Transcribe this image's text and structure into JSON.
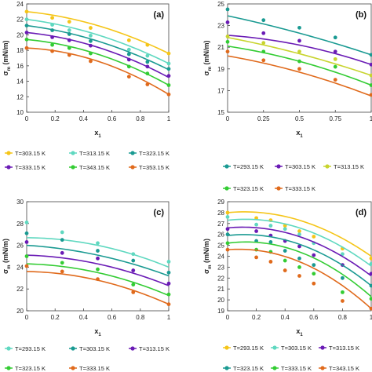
{
  "chart_data": [
    {
      "type": "scatter",
      "panel_label": "(a)",
      "xlabel": "x",
      "xlabel_sub": "1",
      "ylabel": "σ",
      "ylabel_sub": "m",
      "ylabel_unit": " (mN/m)",
      "xlim": [
        0,
        1
      ],
      "ylim": [
        10,
        24
      ],
      "xticks": [
        "0",
        "0.2",
        "0.4",
        "0.6",
        "0.8",
        "1"
      ],
      "yticks": [
        "10",
        "12",
        "14",
        "16",
        "18",
        "20",
        "22",
        "24"
      ],
      "grid": false,
      "legend": "below",
      "series": [
        {
          "name": "T=303.15 K",
          "color": "#F5C518",
          "x": [
            0,
            0.18,
            0.3,
            0.45,
            0.72,
            0.85,
            1
          ],
          "y": [
            23.0,
            22.2,
            21.7,
            20.9,
            19.3,
            18.7,
            17.6
          ],
          "fit_y": [
            23.0,
            21.2,
            17.6
          ]
        },
        {
          "name": "T=313.15 K",
          "color": "#5FD8C0",
          "x": [
            0,
            0.18,
            0.3,
            0.45,
            0.72,
            0.85,
            1
          ],
          "y": [
            22.0,
            21.3,
            20.6,
            19.9,
            18.1,
            17.3,
            16.3
          ],
          "fit_y": [
            22.0,
            20.0,
            16.3
          ]
        },
        {
          "name": "T=323.15 K",
          "color": "#1A9A92",
          "x": [
            0,
            0.18,
            0.3,
            0.45,
            0.72,
            0.85,
            1
          ],
          "y": [
            21.2,
            20.6,
            20.1,
            19.2,
            17.5,
            16.5,
            15.6
          ],
          "fit_y": [
            21.2,
            19.2,
            15.5
          ]
        },
        {
          "name": "T=333.15 K",
          "color": "#6A1BB5",
          "x": [
            0,
            0.18,
            0.3,
            0.45,
            0.72,
            0.85,
            1
          ],
          "y": [
            20.3,
            19.7,
            19.3,
            18.6,
            16.8,
            15.9,
            14.7
          ],
          "fit_y": [
            20.3,
            18.4,
            14.5
          ]
        },
        {
          "name": "T=343.15 K",
          "color": "#33CC33",
          "x": [
            0,
            0.18,
            0.3,
            0.45,
            0.72,
            0.85,
            1
          ],
          "y": [
            19.4,
            18.7,
            18.3,
            17.6,
            15.9,
            15.0,
            13.5
          ],
          "fit_y": [
            19.4,
            17.5,
            13.5
          ]
        },
        {
          "name": "T=353.15 K",
          "color": "#E06A1C",
          "x": [
            0,
            0.18,
            0.3,
            0.45,
            0.72,
            0.85,
            1
          ],
          "y": [
            18.3,
            17.9,
            17.4,
            16.6,
            14.6,
            13.6,
            12.3
          ],
          "fit_y": [
            18.3,
            16.6,
            12.3
          ]
        }
      ]
    },
    {
      "type": "scatter",
      "panel_label": "(b)",
      "xlabel": "x",
      "xlabel_sub": "1",
      "ylabel": "σ",
      "ylabel_sub": "m",
      "ylabel_unit": " (mN/m)",
      "xlim": [
        0,
        1
      ],
      "ylim": [
        15,
        25
      ],
      "xticks": [
        "0",
        "0.25",
        "0.5",
        "0.75",
        "1"
      ],
      "yticks": [
        "15",
        "17",
        "19",
        "21",
        "23",
        "25"
      ],
      "grid": false,
      "legend": "below",
      "series": [
        {
          "name": "T=293.15 K",
          "color": "#1A9A92",
          "x": [
            0,
            0.25,
            0.5,
            0.75,
            1
          ],
          "y": [
            24.5,
            23.5,
            22.8,
            21.9,
            20.3
          ],
          "fit_y": [
            23.9,
            22.3,
            20.3
          ]
        },
        {
          "name": "T=303.15 K",
          "color": "#6A1BB5",
          "x": [
            0,
            0.25,
            0.5,
            0.75,
            1
          ],
          "y": [
            23.3,
            22.3,
            21.6,
            20.6,
            19.4
          ],
          "fit_y": [
            22.1,
            21.2,
            19.4
          ]
        },
        {
          "name": "T=313.15 K",
          "color": "#C8D42E",
          "x": [
            0,
            0.25,
            0.5,
            0.75,
            1
          ],
          "y": [
            22.0,
            21.4,
            20.6,
            19.9,
            18.4
          ],
          "fit_y": [
            21.9,
            20.4,
            18.4
          ]
        },
        {
          "name": "T=323.15 K",
          "color": "#33CC33",
          "x": [
            0,
            0.25,
            0.5,
            0.75,
            1
          ],
          "y": [
            21.5,
            20.6,
            19.7,
            19.2,
            17.5
          ],
          "fit_y": [
            21.1,
            19.7,
            17.5
          ]
        },
        {
          "name": "T=333.15 K",
          "color": "#E06A1C",
          "x": [
            0,
            0.25,
            0.5,
            0.75,
            1
          ],
          "y": [
            20.6,
            19.8,
            19.0,
            18.0,
            16.6
          ],
          "fit_y": [
            20.2,
            18.7,
            16.5
          ]
        }
      ]
    },
    {
      "type": "scatter",
      "panel_label": "(c)",
      "xlabel": "x",
      "xlabel_sub": "1",
      "ylabel": "σ",
      "ylabel_sub": "m",
      "ylabel_unit": " (mN/m)",
      "xlim": [
        0,
        1
      ],
      "ylim": [
        20,
        30
      ],
      "xticks": [
        "0",
        "0.2",
        "0.4",
        "0.6",
        "0.8",
        "1"
      ],
      "yticks": [
        "20",
        "22",
        "24",
        "26",
        "28",
        "30"
      ],
      "grid": false,
      "legend": "below",
      "series": [
        {
          "name": "T=293.15 K",
          "color": "#5FD8C0",
          "x": [
            0,
            0.25,
            0.5,
            0.75,
            1
          ],
          "y": [
            28.1,
            27.2,
            26.2,
            25.2,
            24.5
          ],
          "fit_y": [
            26.7,
            26.0,
            24.0
          ]
        },
        {
          "name": "T=303.15 K",
          "color": "#1A9A92",
          "x": [
            0,
            0.25,
            0.5,
            0.75,
            1
          ],
          "y": [
            27.1,
            26.5,
            25.5,
            24.6,
            23.5
          ],
          "fit_y": [
            26.0,
            25.1,
            23.2
          ]
        },
        {
          "name": "T=313.15 K",
          "color": "#6A1BB5",
          "x": [
            0,
            0.25,
            0.5,
            0.75,
            1
          ],
          "y": [
            26.3,
            25.3,
            24.8,
            23.7,
            22.5
          ],
          "fit_y": [
            25.1,
            24.3,
            22.3
          ]
        },
        {
          "name": "T=323.15 K",
          "color": "#33CC33",
          "x": [
            0,
            0.25,
            0.5,
            0.75,
            1
          ],
          "y": [
            25.0,
            24.4,
            23.8,
            22.4,
            21.5
          ],
          "fit_y": [
            24.3,
            23.5,
            21.4
          ]
        },
        {
          "name": "T=333.15 K",
          "color": "#E06A1C",
          "x": [
            0,
            0.25,
            0.5,
            0.75,
            1
          ],
          "y": [
            24.1,
            23.6,
            22.9,
            21.7,
            20.6
          ],
          "fit_y": [
            23.6,
            22.8,
            20.6
          ]
        }
      ]
    },
    {
      "type": "scatter",
      "panel_label": "(d)",
      "xlabel": "x",
      "xlabel_sub": "1",
      "ylabel": "σ",
      "ylabel_sub": "m",
      "ylabel_unit": " (mN/m)",
      "xlim": [
        0,
        1
      ],
      "ylim": [
        19,
        29
      ],
      "xticks": [
        "0",
        "0.2",
        "0.4",
        "0.6",
        "0.8",
        "1"
      ],
      "yticks": [
        "19",
        "20",
        "21",
        "22",
        "23",
        "24",
        "25",
        "26",
        "27",
        "28",
        "29"
      ],
      "grid": false,
      "legend": "below",
      "series": [
        {
          "name": "T=293.15 K",
          "color": "#F5C518",
          "x": [
            0,
            0.2,
            0.3,
            0.4,
            0.5,
            0.6,
            0.8,
            1
          ],
          "y": [
            28.0,
            27.5,
            27.3,
            26.8,
            26.3,
            25.8,
            24.7,
            23.8
          ],
          "fit_y": [
            28.0,
            27.3,
            24.0
          ]
        },
        {
          "name": "T=303.15 K",
          "color": "#5FD8C0",
          "x": [
            0,
            0.2,
            0.3,
            0.4,
            0.5,
            0.6,
            0.8,
            1
          ],
          "y": [
            27.6,
            26.9,
            26.8,
            26.5,
            26.0,
            25.2,
            24.2,
            23.3
          ],
          "fit_y": [
            27.3,
            26.6,
            23.1
          ]
        },
        {
          "name": "T=313.15 K",
          "color": "#6A1BB5",
          "x": [
            0,
            0.2,
            0.3,
            0.4,
            0.5,
            0.6,
            0.8,
            1
          ],
          "y": [
            26.5,
            26.3,
            25.9,
            25.4,
            24.9,
            24.1,
            23.2,
            22.4
          ],
          "fit_y": [
            26.6,
            25.8,
            22.2
          ]
        },
        {
          "name": "T=323.15 K",
          "color": "#1A9A92",
          "x": [
            0,
            0.2,
            0.3,
            0.4,
            0.5,
            0.6,
            0.8,
            1
          ],
          "y": [
            26.0,
            25.4,
            25.3,
            24.5,
            23.8,
            23.2,
            22.0,
            21.3
          ],
          "fit_y": [
            25.9,
            25.1,
            21.3
          ]
        },
        {
          "name": "T=333.15 K",
          "color": "#33CC33",
          "x": [
            0,
            0.2,
            0.3,
            0.4,
            0.5,
            0.6,
            0.8,
            1
          ],
          "y": [
            25.2,
            24.6,
            24.4,
            23.6,
            23.0,
            22.4,
            20.7,
            20.1
          ],
          "fit_y": [
            25.2,
            24.4,
            20.3
          ]
        },
        {
          "name": "T=343.15 K",
          "color": "#E06A1C",
          "x": [
            0,
            0.2,
            0.3,
            0.4,
            0.5,
            0.6,
            0.8,
            1
          ],
          "y": [
            24.6,
            23.9,
            23.5,
            22.7,
            22.2,
            21.5,
            19.9,
            19.2
          ],
          "fit_y": [
            24.6,
            23.5,
            19.2
          ]
        }
      ]
    }
  ]
}
